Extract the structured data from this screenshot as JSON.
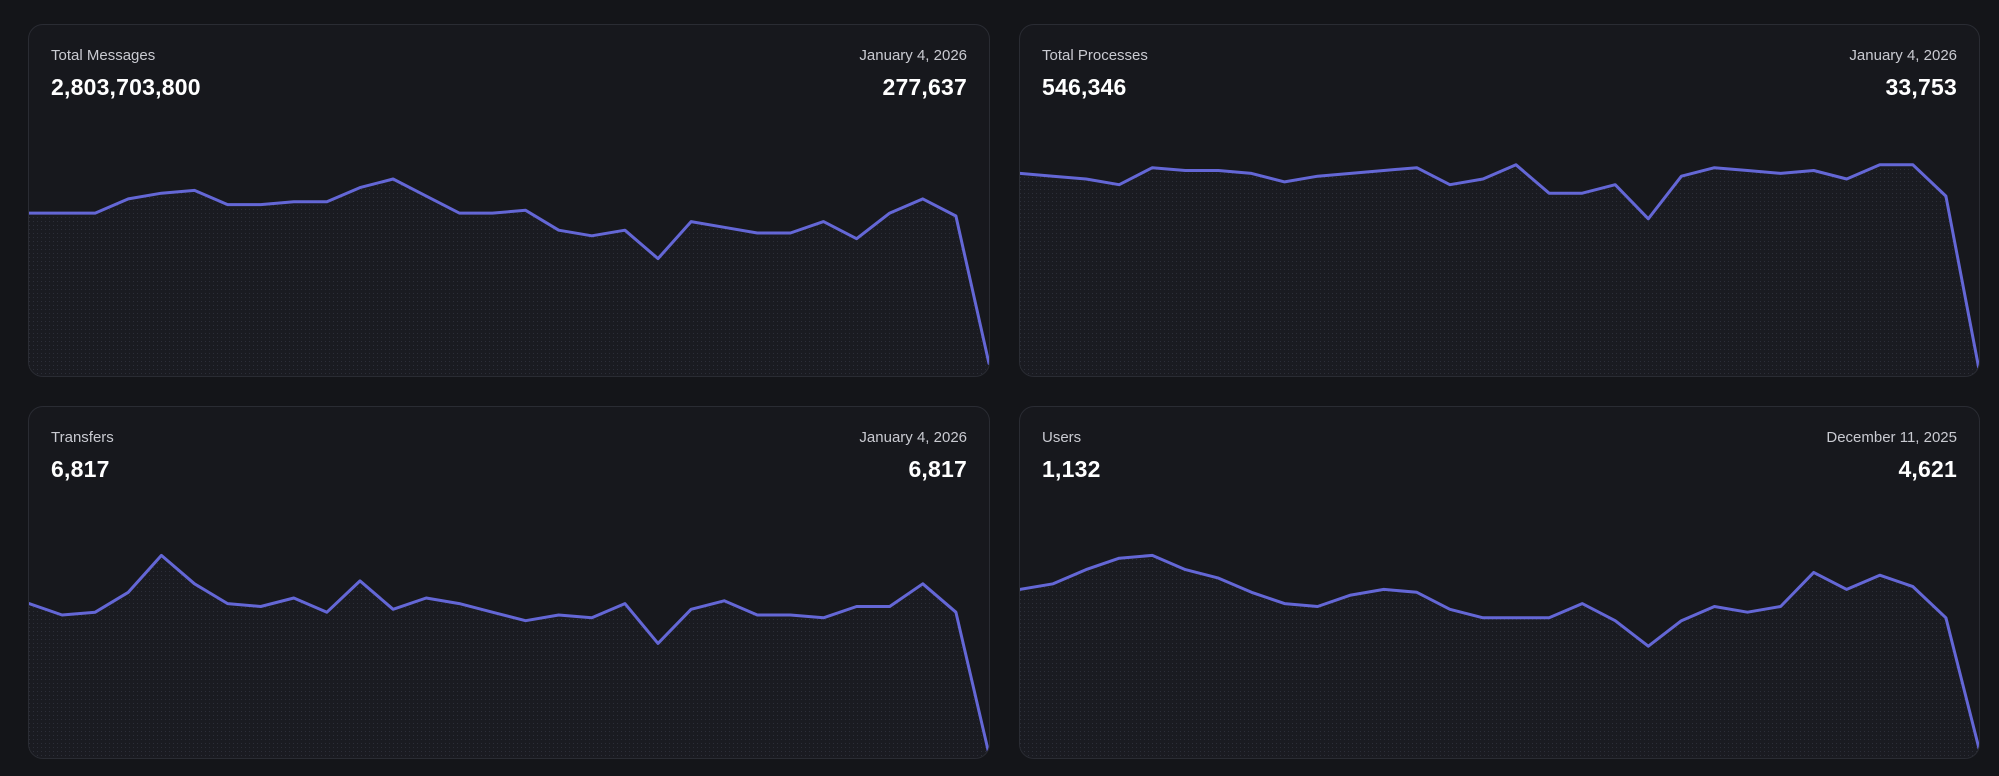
{
  "colors": {
    "background": "#141519",
    "card": "#17181d",
    "line": "#6467d6",
    "text_primary": "#ffffff",
    "text_secondary": "#c9cad1"
  },
  "cards": [
    {
      "title": "Total Messages",
      "total": "2,803,703,800",
      "date": "January 4, 2026",
      "latest": "277,637"
    },
    {
      "title": "Total Processes",
      "total": "546,346",
      "date": "January 4, 2026",
      "latest": "33,753"
    },
    {
      "title": "Transfers",
      "total": "6,817",
      "date": "January 4, 2026",
      "latest": "6,817"
    },
    {
      "title": "Users",
      "total": "1,132",
      "date": "December 11, 2025",
      "latest": "4,621"
    }
  ],
  "chart_data": [
    {
      "type": "area",
      "title": "Total Messages",
      "ylim": [
        0,
        100
      ],
      "values": [
        57,
        57,
        57,
        62,
        64,
        65,
        60,
        60,
        61,
        61,
        66,
        69,
        63,
        57,
        57,
        58,
        51,
        49,
        51,
        41,
        54,
        52,
        50,
        50,
        54,
        48,
        57,
        62,
        56,
        4
      ]
    },
    {
      "type": "area",
      "title": "Total Processes",
      "ylim": [
        0,
        100
      ],
      "values": [
        71,
        70,
        69,
        67,
        73,
        72,
        72,
        71,
        68,
        70,
        71,
        72,
        73,
        67,
        69,
        74,
        64,
        64,
        67,
        55,
        70,
        73,
        72,
        71,
        72,
        69,
        74,
        74,
        63,
        2
      ]
    },
    {
      "type": "area",
      "title": "Transfers",
      "ylim": [
        0,
        100
      ],
      "values": [
        54,
        50,
        51,
        58,
        71,
        61,
        54,
        53,
        56,
        51,
        62,
        52,
        56,
        54,
        51,
        48,
        50,
        49,
        54,
        40,
        52,
        55,
        50,
        50,
        49,
        53,
        53,
        61,
        51,
        1
      ]
    },
    {
      "type": "area",
      "title": "Users",
      "ylim": [
        0,
        100
      ],
      "values": [
        59,
        61,
        66,
        70,
        71,
        66,
        63,
        58,
        54,
        53,
        57,
        59,
        58,
        52,
        49,
        49,
        49,
        54,
        48,
        39,
        48,
        53,
        51,
        53,
        65,
        59,
        64,
        60,
        49,
        3
      ]
    }
  ]
}
